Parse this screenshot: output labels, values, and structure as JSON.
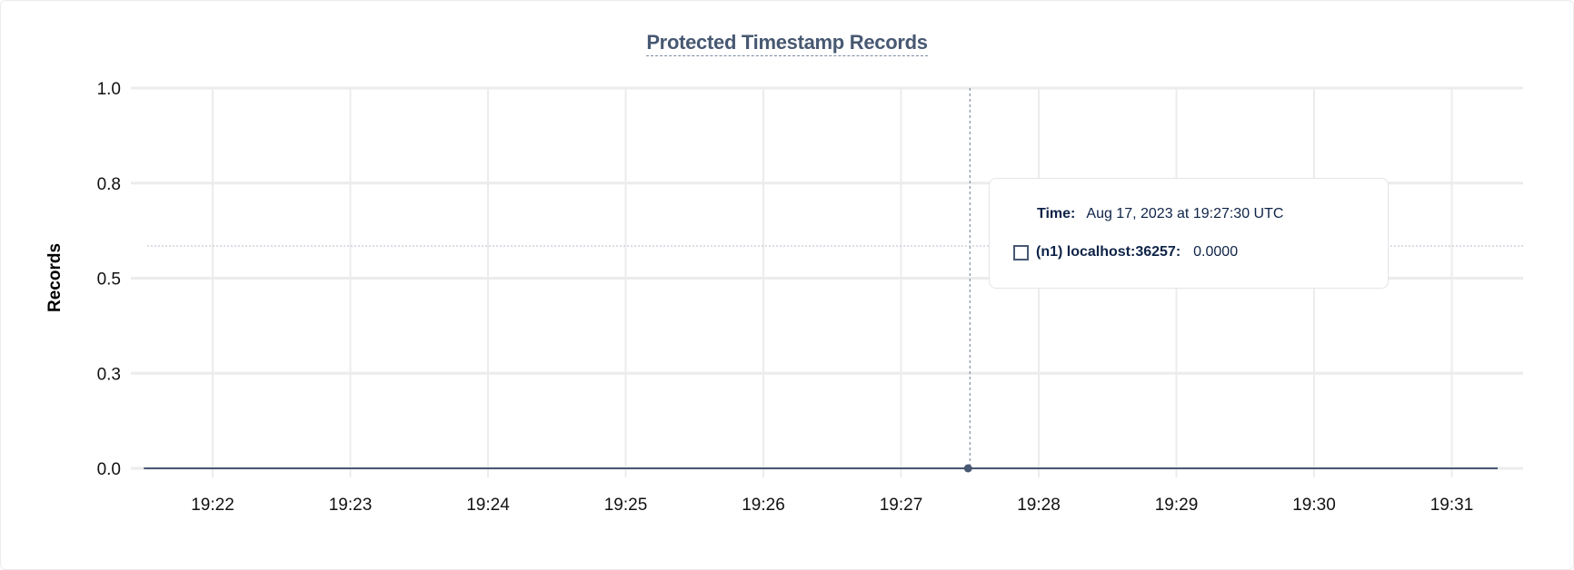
{
  "chart_data": {
    "type": "line",
    "title": "Protected Timestamp Records",
    "xlabel": "",
    "ylabel": "Records",
    "x_ticks": [
      "19:22",
      "19:23",
      "19:24",
      "19:25",
      "19:26",
      "19:27",
      "19:28",
      "19:29",
      "19:30",
      "19:31"
    ],
    "y_ticks": [
      "0.0",
      "0.3",
      "0.5",
      "0.8",
      "1.0"
    ],
    "ylim": [
      0,
      1
    ],
    "xlim": [
      "19:21:30",
      "19:31:20"
    ],
    "grid": true,
    "series": [
      {
        "name": "(n1) localhost:36257",
        "color": "#475872",
        "x": [
          "19:21:30",
          "19:31:20"
        ],
        "y": [
          0,
          0
        ]
      }
    ],
    "hover": {
      "x": "19:27:30",
      "y": 0
    }
  },
  "tooltip": {
    "time_label": "Time:",
    "time_value": "Aug 17, 2023 at 19:27:30 UTC",
    "series_label": "(n1) localhost:36257:",
    "series_value": "0.0000"
  }
}
